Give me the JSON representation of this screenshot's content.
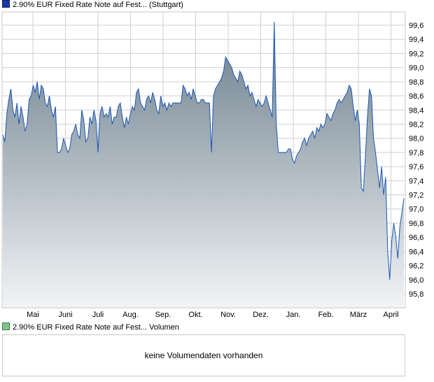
{
  "price_legend": "2.90% EUR Fixed Rate Note auf Fest... (Stuttgart)",
  "volume_legend": "2.90% EUR Fixed Rate Note auf Fest... Volumen",
  "volume_empty_text": "keine Volumendaten vorhanden",
  "colors": {
    "line": "#1a56b8",
    "fill_top": "#6a7d8a",
    "fill_bottom": "#f2f4f6",
    "grid": "#cfcfcf",
    "panel_border": "#c8c8c8"
  },
  "chart_data": {
    "type": "area",
    "title": "",
    "xlabel": "",
    "ylabel": "",
    "ylim": [
      95.6,
      99.7
    ],
    "grid": true,
    "y_ticks": [
      "95,8",
      "96,0",
      "96,2",
      "96,4",
      "96,6",
      "96,8",
      "97,0",
      "97,2",
      "97,4",
      "97,6",
      "97,8",
      "98,0",
      "98,2",
      "98,4",
      "98,6",
      "98,8",
      "99,0",
      "99,2",
      "99,4",
      "99,6"
    ],
    "x_tick_labels": [
      "Mai",
      "Juni",
      "Juli",
      "Aug.",
      "Sep.",
      "Okt.",
      "Nov.",
      "Dez.",
      "Jan.",
      "Feb.",
      "März",
      "April"
    ],
    "series": [
      {
        "values": [
          98.05,
          97.95,
          98.35,
          98.55,
          98.7,
          98.4,
          98.3,
          98.5,
          98.2,
          98.45,
          98.3,
          98.1,
          98.2,
          98.55,
          98.6,
          98.75,
          98.65,
          98.8,
          98.55,
          98.75,
          98.7,
          98.5,
          98.45,
          98.6,
          98.4,
          98.3,
          98.45,
          97.8,
          97.8,
          97.85,
          98.0,
          97.9,
          97.8,
          97.85,
          98.05,
          98.1,
          98.2,
          98.05,
          98.0,
          98.4,
          98.25,
          97.95,
          98.0,
          98.3,
          98.2,
          98.4,
          98.25,
          97.8,
          98.35,
          98.45,
          98.3,
          98.35,
          98.3,
          98.45,
          98.2,
          98.3,
          98.3,
          98.45,
          98.5,
          98.3,
          98.15,
          98.3,
          98.2,
          98.35,
          98.45,
          98.4,
          98.65,
          98.7,
          98.5,
          98.45,
          98.4,
          98.55,
          98.6,
          98.5,
          98.65,
          98.55,
          98.4,
          98.35,
          98.6,
          98.45,
          98.5,
          98.4,
          98.5,
          98.45,
          98.5,
          98.5,
          98.5,
          98.5,
          98.5,
          98.75,
          98.7,
          98.6,
          98.65,
          98.55,
          98.7,
          98.6,
          98.5,
          98.5,
          98.55,
          98.55,
          98.5,
          98.5,
          98.5,
          97.8,
          98.6,
          98.7,
          98.75,
          98.8,
          98.85,
          98.95,
          99.15,
          99.1,
          99.05,
          99.0,
          98.9,
          98.85,
          98.8,
          98.95,
          98.9,
          98.8,
          98.7,
          98.75,
          98.6,
          98.65,
          98.55,
          98.45,
          98.55,
          98.5,
          98.45,
          98.5,
          98.6,
          98.5,
          98.4,
          98.3,
          99.65,
          98.2,
          97.8,
          97.8,
          97.8,
          97.8,
          97.8,
          97.85,
          97.85,
          97.7,
          97.65,
          97.75,
          97.8,
          97.85,
          97.95,
          98.0,
          97.9,
          98.0,
          98.05,
          98.1,
          98.0,
          98.15,
          98.1,
          98.2,
          98.15,
          98.2,
          98.35,
          98.3,
          98.25,
          98.35,
          98.4,
          98.5,
          98.55,
          98.5,
          98.55,
          98.6,
          98.65,
          98.75,
          98.7,
          98.45,
          98.25,
          98.4,
          98.2,
          97.3,
          97.25,
          97.75,
          98.3,
          98.7,
          98.6,
          98.0,
          97.8,
          97.55,
          97.3,
          97.6,
          97.2,
          97.45,
          96.4,
          96.0,
          96.55,
          96.8,
          96.6,
          96.3,
          96.75,
          96.95,
          97.15
        ]
      }
    ]
  }
}
